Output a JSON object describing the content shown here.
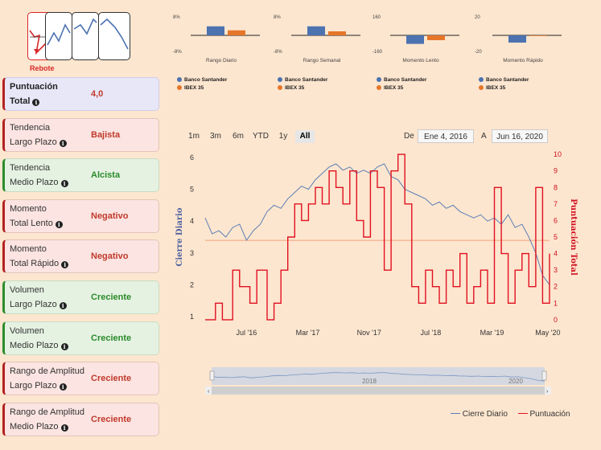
{
  "pattern_label": "Rebote",
  "cards": [
    {
      "line1": "Puntuación",
      "line2": "Total",
      "value": "4,0",
      "variant": "purple",
      "value_color": "red"
    },
    {
      "line1": "Tendencia",
      "line2": "Largo Plazo",
      "value": "Bajista",
      "variant": "red",
      "value_color": "red"
    },
    {
      "line1": "Tendencia",
      "line2": "Medio Plazo",
      "value": "Alcista",
      "variant": "green",
      "value_color": "green"
    },
    {
      "line1": "Momento",
      "line2": "Total Lento",
      "value": "Negativo",
      "variant": "red",
      "value_color": "red"
    },
    {
      "line1": "Momento",
      "line2": "Total Rápido",
      "value": "Negativo",
      "variant": "red",
      "value_color": "red"
    },
    {
      "line1": "Volumen",
      "line2": "Largo Plazo",
      "value": "Creciente",
      "variant": "green",
      "value_color": "green"
    },
    {
      "line1": "Volumen",
      "line2": "Medio Plazo",
      "value": "Creciente",
      "variant": "green",
      "value_color": "green"
    },
    {
      "line1": "Rango de Amplitud",
      "line2": "Largo Plazo",
      "value": "Creciente",
      "variant": "red",
      "value_color": "red"
    },
    {
      "line1": "Rango de Amplitud",
      "line2": "Medio Plazo",
      "value": "Creciente",
      "variant": "red",
      "value_color": "red"
    }
  ],
  "colors": {
    "santander": "#4c72b0",
    "ibex": "#e6762a",
    "price": "#5b7fb5",
    "score": "#e01020",
    "ref": "#f3a07a"
  },
  "range_buttons": [
    "1m",
    "3m",
    "6m",
    "YTD",
    "1y",
    "All"
  ],
  "active_range": "All",
  "date_from_label": "De",
  "date_to_label": "A",
  "date_from": "Ene 4, 2016",
  "date_to": "Jun 16, 2020",
  "navigator_labels": [
    "2018",
    "2020"
  ],
  "chart_data": [
    {
      "type": "bar",
      "title": "Rango Diario",
      "ytick_top": "8%",
      "ytick_bottom": "-8%",
      "ylim": [
        -8,
        8
      ],
      "series": [
        {
          "name": "Banco Santander",
          "values": [
            4.5
          ]
        },
        {
          "name": "IBEX 35",
          "values": [
            2.5
          ]
        }
      ]
    },
    {
      "type": "bar",
      "title": "Rango Semanal",
      "ytick_top": "8%",
      "ytick_bottom": "-8%",
      "ylim": [
        -8,
        8
      ],
      "series": [
        {
          "name": "Banco Santander",
          "values": [
            4.5
          ]
        },
        {
          "name": "IBEX 35",
          "values": [
            2
          ]
        }
      ]
    },
    {
      "type": "bar",
      "title": "Momento Lento",
      "ytick_top": "160",
      "ytick_bottom": "-160",
      "ylim": [
        -160,
        160
      ],
      "series": [
        {
          "name": "Banco Santander",
          "values": [
            -85
          ]
        },
        {
          "name": "IBEX 35",
          "values": [
            -48
          ]
        }
      ]
    },
    {
      "type": "bar",
      "title": "Momento Rápido",
      "ytick_top": "20",
      "ytick_bottom": "-20",
      "ylim": [
        -20,
        20
      ],
      "series": [
        {
          "name": "Banco Santander",
          "values": [
            -9
          ]
        },
        {
          "name": "IBEX 35",
          "values": [
            -0.5
          ]
        }
      ]
    },
    {
      "type": "line",
      "ylabel_left": "Cierre Diario",
      "ylabel_right": "Puntuación Total",
      "left_ticks": [
        "1",
        "2",
        "3",
        "4",
        "5",
        "6"
      ],
      "right_ticks": [
        "0",
        "1",
        "2",
        "3",
        "4",
        "5",
        "6",
        "7",
        "8",
        "9",
        "10"
      ],
      "left_ylim": [
        0.8,
        6.2
      ],
      "right_ylim": [
        -0.2,
        10.2
      ],
      "x_ticks": [
        "Jul '16",
        "Mar '17",
        "Nov '17",
        "Jul '18",
        "Mar '19",
        "May '20"
      ],
      "x_tick_pos": [
        0.12,
        0.298,
        0.476,
        0.655,
        0.833,
        0.995
      ],
      "reference_value": 4.8,
      "legend": [
        "Cierre Diario",
        "Puntuación"
      ],
      "series": [
        {
          "name": "Cierre Diario",
          "x": [
            0,
            0.02,
            0.04,
            0.06,
            0.08,
            0.1,
            0.12,
            0.14,
            0.16,
            0.18,
            0.2,
            0.22,
            0.24,
            0.26,
            0.28,
            0.3,
            0.32,
            0.34,
            0.36,
            0.38,
            0.4,
            0.42,
            0.44,
            0.46,
            0.48,
            0.5,
            0.52,
            0.54,
            0.56,
            0.58,
            0.6,
            0.62,
            0.64,
            0.66,
            0.68,
            0.7,
            0.72,
            0.74,
            0.76,
            0.78,
            0.8,
            0.82,
            0.84,
            0.86,
            0.88,
            0.9,
            0.92,
            0.94,
            0.96,
            0.98,
            1.0
          ],
          "y": [
            4.1,
            3.6,
            3.7,
            3.5,
            3.8,
            3.9,
            3.4,
            3.7,
            3.9,
            4.3,
            4.5,
            4.4,
            4.7,
            4.9,
            5.1,
            5.0,
            5.3,
            5.5,
            5.7,
            5.8,
            5.6,
            5.7,
            5.5,
            5.6,
            5.5,
            5.7,
            5.8,
            5.4,
            5.3,
            5.0,
            4.9,
            4.8,
            4.7,
            4.5,
            4.6,
            4.4,
            4.5,
            4.3,
            4.2,
            4.1,
            4.2,
            4.0,
            4.1,
            3.9,
            4.2,
            3.8,
            3.9,
            3.5,
            3.0,
            2.3,
            2.0
          ]
        },
        {
          "name": "Puntuación",
          "x": [
            0,
            0.03,
            0.05,
            0.08,
            0.1,
            0.13,
            0.15,
            0.18,
            0.2,
            0.22,
            0.24,
            0.26,
            0.28,
            0.3,
            0.32,
            0.34,
            0.36,
            0.38,
            0.4,
            0.42,
            0.44,
            0.46,
            0.48,
            0.5,
            0.52,
            0.54,
            0.56,
            0.58,
            0.6,
            0.62,
            0.64,
            0.66,
            0.68,
            0.7,
            0.72,
            0.74,
            0.76,
            0.78,
            0.8,
            0.82,
            0.84,
            0.86,
            0.88,
            0.9,
            0.92,
            0.94,
            0.96,
            0.98,
            1.0
          ],
          "y": [
            0,
            1,
            0,
            3,
            2,
            1,
            3,
            0,
            1,
            3,
            5,
            7,
            6,
            7,
            8,
            7,
            9,
            8,
            7,
            9,
            6,
            5,
            9,
            8,
            3,
            9,
            10,
            7,
            2,
            1,
            3,
            2,
            1,
            3,
            2,
            4,
            1,
            2,
            3,
            1,
            8,
            4,
            1,
            3,
            4,
            2,
            8,
            1,
            4
          ]
        }
      ]
    }
  ]
}
